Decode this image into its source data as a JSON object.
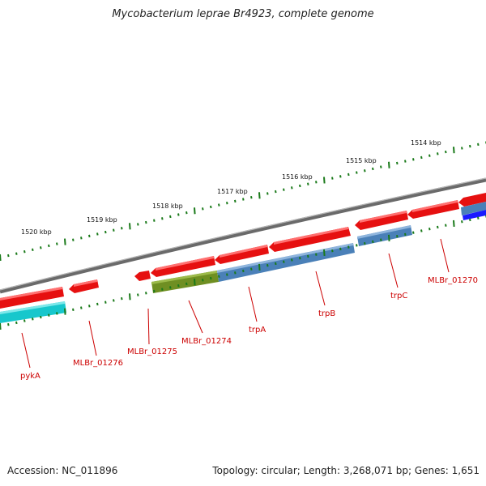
{
  "title": "Mycobacterium leprae Br4923, complete genome",
  "footer": {
    "accession": "Accession: NC_011896",
    "summary": "Topology: circular; Length: 3,268,071 bp; Genes: 1,651"
  },
  "scale_labels": [
    "1514 kbp",
    "1515 kbp",
    "1516 kbp",
    "1517 kbp",
    "1518 kbp",
    "1519 kbp",
    "1520 kbp"
  ],
  "genes": [
    "pykA",
    "MLBr_01276",
    "MLBr_01275",
    "MLBr_01274",
    "trpA",
    "trpB",
    "trpC",
    "MLBr_01270"
  ],
  "colors": {
    "backbone": "#7a7a7a",
    "cds_red": "#ee1111",
    "cds_blue": "#4a7fb5",
    "cds_olive": "#6b8e23",
    "cds_cyan": "#19c3c9",
    "cds_dark_blue": "#1a1aff",
    "ticks": "#1a7a1a",
    "label": "#cc0000"
  }
}
